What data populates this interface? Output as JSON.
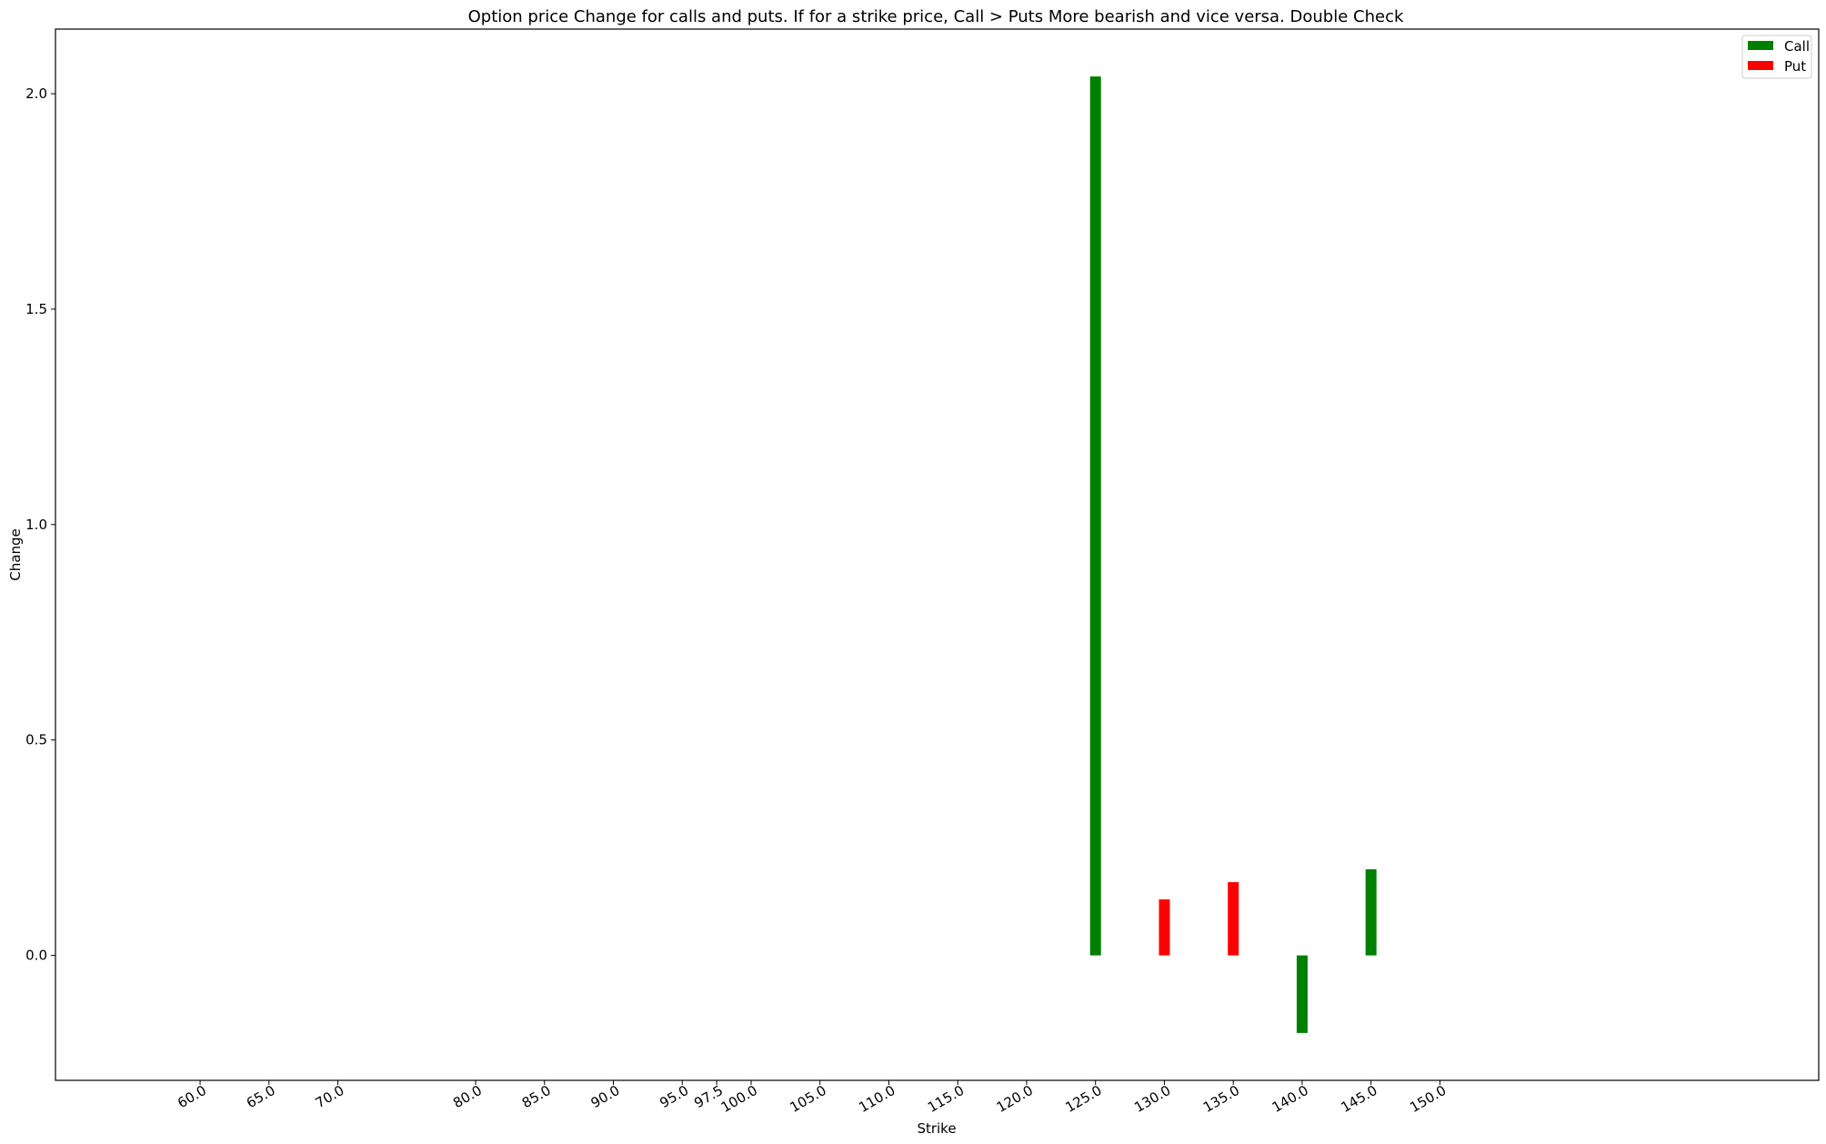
{
  "chart_data": {
    "type": "bar",
    "title": "Option price Change for calls and puts. If for a strike price, Call > Puts More bearish and vice versa. Double Check",
    "xlabel": "Strike",
    "ylabel": "Change",
    "x_ticks": [
      "60.0",
      "65.0",
      "70.0",
      "80.0",
      "85.0",
      "90.0",
      "95.0",
      "97.5",
      "100.0",
      "105.0",
      "110.0",
      "115.0",
      "120.0",
      "125.0",
      "130.0",
      "135.0",
      "140.0",
      "145.0",
      "150.0"
    ],
    "y_ticks": [
      "0.0",
      "0.5",
      "1.0",
      "1.5",
      "2.0"
    ],
    "xlim": [
      49.5,
      177.5
    ],
    "ylim": [
      -0.29,
      2.15
    ],
    "grid": false,
    "legend_position": "top-right",
    "series": [
      {
        "name": "Call",
        "color": "#008000",
        "points": [
          {
            "x": 125.0,
            "y": 2.04
          },
          {
            "x": 140.0,
            "y": -0.18
          },
          {
            "x": 145.0,
            "y": 0.2
          }
        ]
      },
      {
        "name": "Put",
        "color": "#ff0000",
        "points": [
          {
            "x": 130.0,
            "y": 0.13
          },
          {
            "x": 135.0,
            "y": 0.17
          }
        ]
      }
    ]
  }
}
